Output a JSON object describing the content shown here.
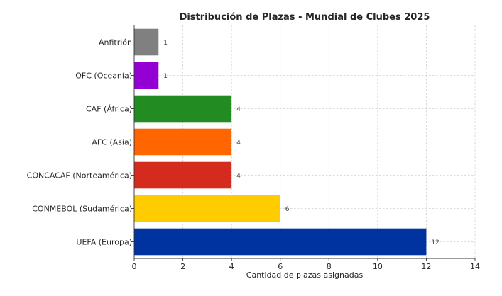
{
  "chart_data": {
    "type": "bar",
    "orientation": "horizontal",
    "title": "Distribución de Plazas - Mundial de Clubes 2025",
    "xlabel": "Cantidad de plazas asignadas",
    "ylabel": "",
    "xlim": [
      0,
      14
    ],
    "x_ticks": [
      0,
      2,
      4,
      6,
      8,
      10,
      12,
      14
    ],
    "grid": true,
    "categories": [
      "UEFA (Europa)",
      "CONMEBOL (Sudamérica)",
      "CONCACAF (Norteamérica)",
      "AFC (Asia)",
      "CAF (África)",
      "OFC (Oceanía)",
      "Anfitrión"
    ],
    "values": [
      12,
      6,
      4,
      4,
      4,
      1,
      1
    ],
    "colors": [
      "#0033a0",
      "#ffcc00",
      "#d52b1e",
      "#ff6600",
      "#228b22",
      "#9400d3",
      "#808080"
    ],
    "data_labels": [
      "12",
      "6",
      "4",
      "4",
      "4",
      "1",
      "1"
    ]
  }
}
